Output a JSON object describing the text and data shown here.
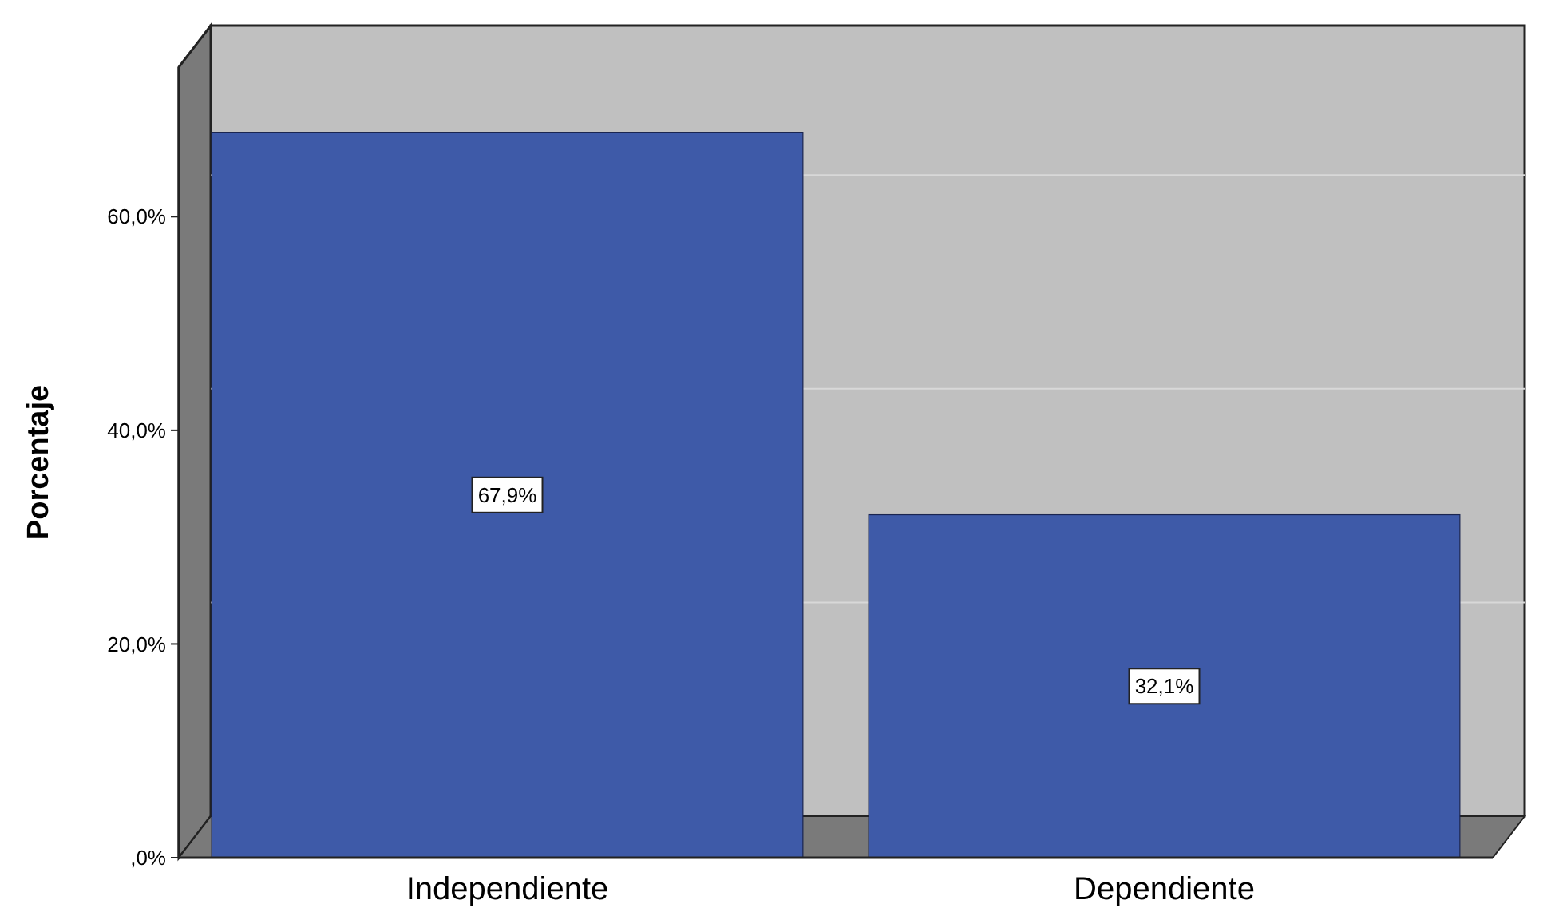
{
  "chart_data": {
    "type": "bar",
    "ylabel": "Porcentaje",
    "categories": [
      "Independiente",
      "Dependiente"
    ],
    "values": [
      67.9,
      32.1
    ],
    "color": "#3e5aa8",
    "value_labels": [
      "67,9%",
      "32,1%"
    ],
    "ylim": [
      0,
      74
    ],
    "yticks": [
      {
        "value": 0,
        "label": ",0%"
      },
      {
        "value": 20,
        "label": "20,0%"
      },
      {
        "value": 40,
        "label": "40,0%"
      },
      {
        "value": 60,
        "label": "60,0%"
      }
    ],
    "grid": "y"
  }
}
